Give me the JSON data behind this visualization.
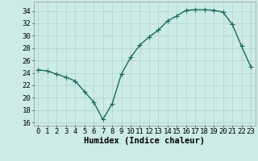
{
  "x": [
    0,
    1,
    2,
    3,
    4,
    5,
    6,
    7,
    8,
    9,
    10,
    11,
    12,
    13,
    14,
    15,
    16,
    17,
    18,
    19,
    20,
    21,
    22,
    23
  ],
  "y": [
    24.5,
    24.3,
    23.8,
    23.3,
    22.7,
    21.0,
    19.3,
    16.5,
    19.0,
    23.8,
    26.5,
    28.5,
    29.8,
    30.9,
    32.4,
    33.2,
    34.1,
    34.2,
    34.2,
    34.1,
    33.8,
    31.8,
    28.3,
    25.0
  ],
  "line_color": "#1a6b5a",
  "marker": "+",
  "marker_size": 4,
  "bg_color": "#cceae7",
  "grid_color": "#aad4d0",
  "xlabel": "Humidex (Indice chaleur)",
  "ylim": [
    15.5,
    35.5
  ],
  "xlim": [
    -0.5,
    23.5
  ],
  "yticks": [
    16,
    18,
    20,
    22,
    24,
    26,
    28,
    30,
    32,
    34
  ],
  "xticks": [
    0,
    1,
    2,
    3,
    4,
    5,
    6,
    7,
    8,
    9,
    10,
    11,
    12,
    13,
    14,
    15,
    16,
    17,
    18,
    19,
    20,
    21,
    22,
    23
  ],
  "xlabel_fontsize": 7.5,
  "tick_fontsize": 6.5,
  "line_width": 1.0
}
